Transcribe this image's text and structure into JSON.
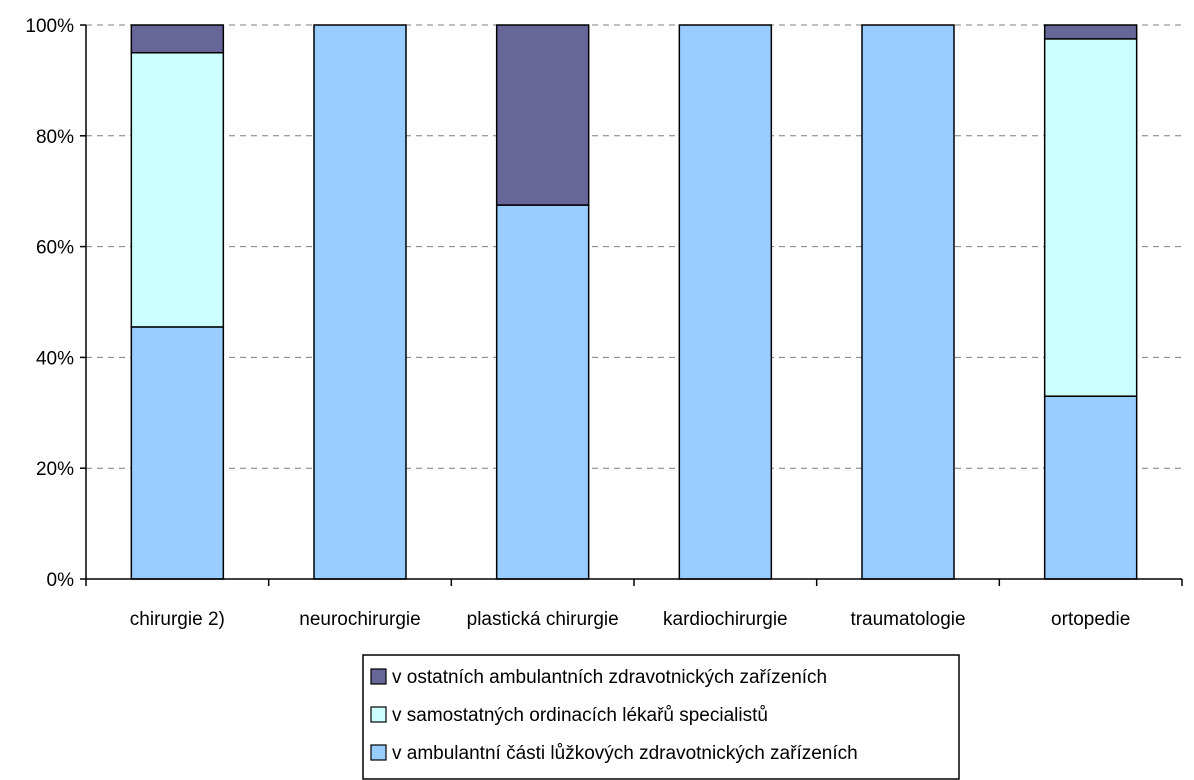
{
  "chart_data": {
    "type": "bar",
    "stacked": true,
    "categories": [
      "chirurgie 2)",
      "neurochirurgie",
      "plastická chirurgie",
      "kardiochirurgie",
      "traumatologie",
      "ortopedie"
    ],
    "series": [
      {
        "name": "v ambulantní části lůžkových zdravotnických zařízeních",
        "color": "#99ccff",
        "values": [
          45.5,
          100,
          67.5,
          100,
          100,
          33
        ]
      },
      {
        "name": "v samostatných ordinacích lékařů specialistů",
        "color": "#ccffff",
        "values": [
          49.5,
          0,
          0,
          0,
          0,
          64.5
        ]
      },
      {
        "name": "v ostatních ambulantních zdravotnických zařízeních",
        "color": "#666699",
        "values": [
          5,
          0,
          32.5,
          0,
          0,
          2.5
        ]
      }
    ],
    "legend_order": [
      2,
      1,
      0
    ],
    "y_ticks": [
      "0%",
      "20%",
      "40%",
      "60%",
      "80%",
      "100%"
    ],
    "ylim": [
      0,
      100
    ],
    "grid": "horizontal dashed",
    "legend_position": "bottom"
  }
}
